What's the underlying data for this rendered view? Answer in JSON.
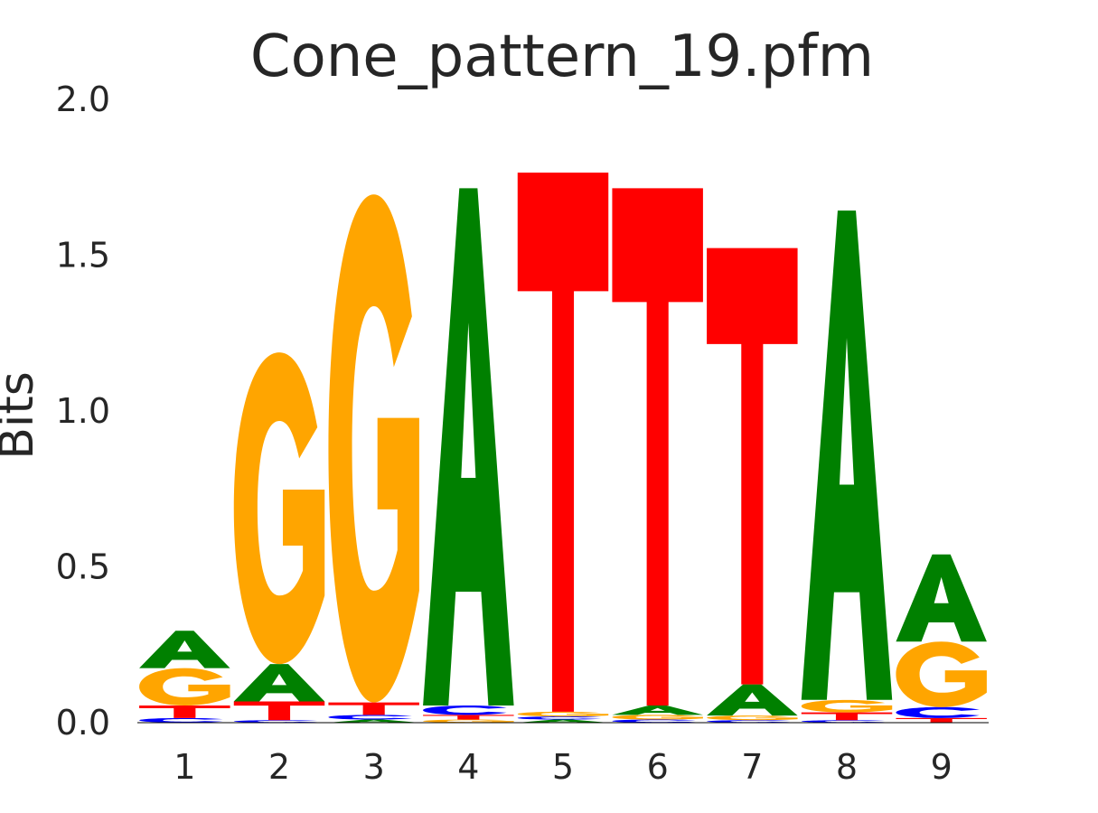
{
  "chart_data": {
    "type": "sequence_logo",
    "title": "Cone_pattern_19.pfm",
    "xlabel": "",
    "ylabel": "Bits",
    "ylim": [
      0,
      2.0
    ],
    "yticks": [
      "0.0",
      "0.5",
      "1.0",
      "1.5",
      "2.0"
    ],
    "positions": [
      "1",
      "2",
      "3",
      "4",
      "5",
      "6",
      "7",
      "8",
      "9"
    ],
    "grid": false,
    "letter_colors": {
      "A": "#008000",
      "C": "#0000ff",
      "G": "#ffa500",
      "T": "#ff0000"
    },
    "stacks": [
      [
        {
          "letter": "C",
          "bits": 0.015
        },
        {
          "letter": "T",
          "bits": 0.04
        },
        {
          "letter": "G",
          "bits": 0.12
        },
        {
          "letter": "A",
          "bits": 0.12
        }
      ],
      [
        {
          "letter": "C",
          "bits": 0.008
        },
        {
          "letter": "T",
          "bits": 0.06
        },
        {
          "letter": "A",
          "bits": 0.12
        },
        {
          "letter": "G",
          "bits": 1.0
        }
      ],
      [
        {
          "letter": "A",
          "bits": 0.01
        },
        {
          "letter": "C",
          "bits": 0.015
        },
        {
          "letter": "T",
          "bits": 0.04
        },
        {
          "letter": "G",
          "bits": 1.63
        }
      ],
      [
        {
          "letter": "G",
          "bits": 0.01
        },
        {
          "letter": "T",
          "bits": 0.015
        },
        {
          "letter": "C",
          "bits": 0.03
        },
        {
          "letter": "A",
          "bits": 1.66
        }
      ],
      [
        {
          "letter": "A",
          "bits": 0.01
        },
        {
          "letter": "C",
          "bits": 0.01
        },
        {
          "letter": "G",
          "bits": 0.015
        },
        {
          "letter": "T",
          "bits": 1.73
        }
      ],
      [
        {
          "letter": "C",
          "bits": 0.01
        },
        {
          "letter": "G",
          "bits": 0.015
        },
        {
          "letter": "A",
          "bits": 0.03
        },
        {
          "letter": "T",
          "bits": 1.66
        }
      ],
      [
        {
          "letter": "C",
          "bits": 0.008
        },
        {
          "letter": "G",
          "bits": 0.015
        },
        {
          "letter": "A",
          "bits": 0.1
        },
        {
          "letter": "T",
          "bits": 1.4
        }
      ],
      [
        {
          "letter": "C",
          "bits": 0.008
        },
        {
          "letter": "T",
          "bits": 0.025
        },
        {
          "letter": "G",
          "bits": 0.04
        },
        {
          "letter": "A",
          "bits": 1.57
        }
      ],
      [
        {
          "letter": "T",
          "bits": 0.015
        },
        {
          "letter": "C",
          "bits": 0.035
        },
        {
          "letter": "G",
          "bits": 0.21
        },
        {
          "letter": "A",
          "bits": 0.28
        }
      ]
    ]
  }
}
